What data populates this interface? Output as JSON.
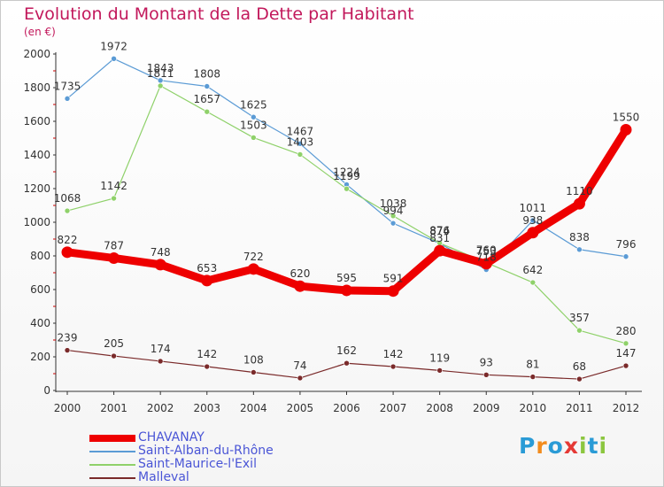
{
  "title": "Evolution du Montant de la Dette par Habitant",
  "unit": "(en €)",
  "logo": {
    "text": "Proxiti",
    "letters": [
      "P",
      "r",
      "o",
      "x",
      "i",
      "t",
      "i"
    ],
    "colors": [
      "#2a9bd6",
      "#f28c1e",
      "#2a9bd6",
      "#e53935",
      "#8cc63f",
      "#2a9bd6",
      "#8cc63f"
    ]
  },
  "chart_data": {
    "type": "line",
    "title": "Evolution du Montant de la Dette par Habitant",
    "ylabel": "(en €)",
    "xlabel": "",
    "ylim": [
      0,
      2000
    ],
    "yticks": [
      "0",
      "200",
      "400",
      "600",
      "800",
      "1000",
      "1200",
      "1400",
      "1600",
      "1800",
      "2000"
    ],
    "categories": [
      "2000",
      "2001",
      "2002",
      "2003",
      "2004",
      "2005",
      "2006",
      "2007",
      "2008",
      "2009",
      "2010",
      "2011",
      "2012"
    ],
    "grid": false,
    "legend_position": "bottom-left",
    "series": [
      {
        "name": "CHAVANAY",
        "color": "#ee0000",
        "values": [
          822,
          787,
          748,
          653,
          722,
          620,
          595,
          591,
          831,
          753,
          938,
          1110,
          1550
        ]
      },
      {
        "name": "Saint-Alban-du-Rhône",
        "color": "#5b9bd5",
        "values": [
          1735,
          1972,
          1843,
          1808,
          1625,
          1467,
          1224,
          994,
          874,
          718,
          1011,
          838,
          796
        ]
      },
      {
        "name": "Saint-Maurice-l'Exil",
        "color": "#8fd16a",
        "values": [
          1068,
          1142,
          1811,
          1657,
          1503,
          1403,
          1199,
          1038,
          876,
          760,
          642,
          357,
          280
        ]
      },
      {
        "name": "Malleval",
        "color": "#7a2a2a",
        "values": [
          239,
          205,
          174,
          142,
          108,
          74,
          162,
          142,
          119,
          93,
          81,
          68,
          147
        ]
      }
    ]
  }
}
